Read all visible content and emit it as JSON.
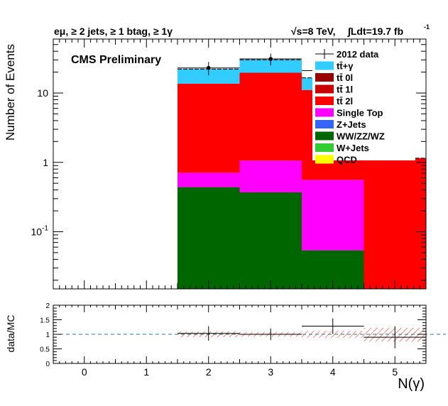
{
  "header": {
    "left": "eμ, ≥ 2 jets, ≥ 1 btag, ≥ 1γ",
    "right_energy": "√s=8 TeV,",
    "right_lumi": "∫Ldt=19.7 fb",
    "right_lumi_sup": "-1"
  },
  "label": "CMS Preliminary",
  "chart_data": {
    "type": "bar",
    "stacked": true,
    "log_y": true,
    "bins": [
      0,
      1,
      2,
      3,
      4,
      5
    ],
    "bin_edges": [
      -0.5,
      0.5,
      1.5,
      2.5,
      3.5,
      4.5,
      5.5
    ],
    "xlabel": "N(γ)",
    "ylabel": "Number of Events",
    "xlim": [
      -0.5,
      5.5
    ],
    "ylim": [
      0.015,
      60
    ],
    "x_ticks": [
      "0",
      "1",
      "2",
      "3",
      "4",
      "5"
    ],
    "y_ticks": [
      "10-1",
      "1",
      "10"
    ],
    "series": [
      {
        "name": "WW/ZZ/WZ",
        "color": "#006600",
        "values": [
          0,
          0,
          0.44,
          0.37,
          0.054,
          0
        ]
      },
      {
        "name": "Single Top",
        "color": "#ff00ff",
        "values": [
          0,
          0,
          0.27,
          0.69,
          0.506,
          0
        ]
      },
      {
        "name": "tt̄ 2l",
        "color": "#ff0000",
        "values": [
          0,
          0,
          12.9,
          17.9,
          10.5,
          1.15
        ]
      },
      {
        "name": "tt̄ 1l",
        "color": "#cc0000",
        "values": [
          0,
          0,
          0,
          0.7,
          0,
          0
        ]
      },
      {
        "name": "tt̄+γ",
        "color": "#33ccff",
        "values": [
          0,
          0,
          8.5,
          10.5,
          5.5,
          0
        ]
      }
    ],
    "legend": [
      {
        "name": "2012 data",
        "marker": "data"
      },
      {
        "name": "tt̄+γ",
        "color": "#33ccff"
      },
      {
        "name": "tt̄ 0l",
        "color": "#990000"
      },
      {
        "name": "tt̄ 1l",
        "color": "#cc0000"
      },
      {
        "name": "tt̄ 2l",
        "color": "#ff0000"
      },
      {
        "name": "Single Top",
        "color": "#ff00ff"
      },
      {
        "name": "Z+Jets",
        "color": "#3366ff"
      },
      {
        "name": "WW/ZZ/WZ",
        "color": "#006600"
      },
      {
        "name": "W+Jets",
        "color": "#33cc33"
      },
      {
        "name": "QCD",
        "color": "#ffff00"
      }
    ],
    "legend_position": "top-right",
    "data": [
      {
        "x": 2,
        "y": 23,
        "err": 5
      },
      {
        "x": 3,
        "y": 31,
        "err": 6
      },
      {
        "x": 4,
        "y": 21,
        "err": 5
      }
    ],
    "ratio": {
      "ylabel": "data/MC",
      "ylim": [
        0,
        2
      ],
      "y_ticks": [
        "0",
        "0.5",
        "1",
        "1.5",
        "2"
      ],
      "reference": 1,
      "points": [
        {
          "x": 2,
          "y": 1.03,
          "xerr": 0.5,
          "yerr": 0.25
        },
        {
          "x": 3,
          "y": 1.0,
          "xerr": 0.5,
          "yerr": 0.2
        },
        {
          "x": 4,
          "y": 1.28,
          "xerr": 0.5,
          "yerr": 0.27
        },
        {
          "x": 5,
          "y": 0.9,
          "xerr": 0.5,
          "yerr": 0.38
        }
      ],
      "uncertainty_band": [
        {
          "x0": 1.5,
          "x1": 2.5,
          "lo": 0.9,
          "hi": 1.1
        },
        {
          "x0": 2.5,
          "x1": 3.5,
          "lo": 0.92,
          "hi": 1.08
        },
        {
          "x0": 3.5,
          "x1": 4.5,
          "lo": 0.88,
          "hi": 1.12
        },
        {
          "x0": 4.5,
          "x1": 5.5,
          "lo": 0.75,
          "hi": 1.22
        }
      ]
    }
  }
}
